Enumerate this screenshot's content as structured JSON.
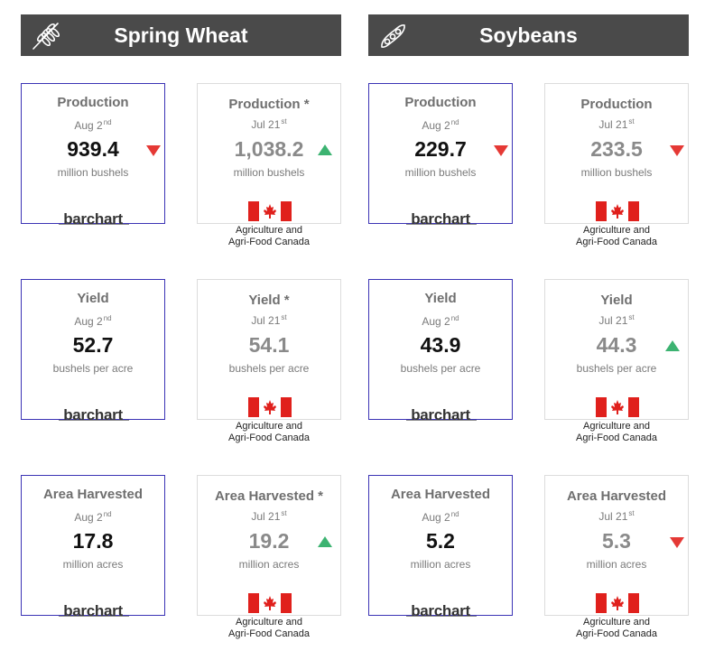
{
  "wheat": {
    "header": {
      "title": "Spring Wheat",
      "icon": "wheat-icon"
    },
    "production": {
      "barchart": {
        "title": "Production",
        "date": "Aug 2",
        "date_sup": "nd",
        "value": "939.4",
        "unit": "million bushels",
        "trend": "down"
      },
      "aafc": {
        "title": "Production *",
        "date": "Jul 21",
        "date_sup": "st",
        "value": "1,038.2",
        "unit": "million bushels",
        "trend": "up"
      }
    },
    "yield": {
      "barchart": {
        "title": "Yield",
        "date": "Aug 2",
        "date_sup": "nd",
        "value": "52.7",
        "unit": "bushels per acre",
        "trend": "none"
      },
      "aafc": {
        "title": "Yield *",
        "date": "Jul 21",
        "date_sup": "st",
        "value": "54.1",
        "unit": "bushels per acre",
        "trend": "none"
      }
    },
    "area": {
      "barchart": {
        "title": "Area Harvested",
        "date": "Aug 2",
        "date_sup": "nd",
        "value": "17.8",
        "unit": "million acres",
        "trend": "none"
      },
      "aafc": {
        "title": "Area Harvested *",
        "date": "Jul 21",
        "date_sup": "st",
        "value": "19.2",
        "unit": "million acres",
        "trend": "up"
      }
    }
  },
  "soy": {
    "header": {
      "title": "Soybeans",
      "icon": "soybean-pod-icon"
    },
    "production": {
      "barchart": {
        "title": "Production",
        "date": "Aug 2",
        "date_sup": "nd",
        "value": "229.7",
        "unit": "million bushels",
        "trend": "down"
      },
      "aafc": {
        "title": "Production",
        "date": "Jul 21",
        "date_sup": "st",
        "value": "233.5",
        "unit": "million bushels",
        "trend": "down"
      }
    },
    "yield": {
      "barchart": {
        "title": "Yield",
        "date": "Aug 2",
        "date_sup": "nd",
        "value": "43.9",
        "unit": "bushels per acre",
        "trend": "none"
      },
      "aafc": {
        "title": "Yield",
        "date": "Jul 21",
        "date_sup": "st",
        "value": "44.3",
        "unit": "bushels per acre",
        "trend": "up"
      }
    },
    "area": {
      "barchart": {
        "title": "Area Harvested",
        "date": "Aug 2",
        "date_sup": "nd",
        "value": "5.2",
        "unit": "million acres",
        "trend": "none"
      },
      "aafc": {
        "title": "Area Harvested",
        "date": "Jul 21",
        "date_sup": "st",
        "value": "5.3",
        "unit": "million acres",
        "trend": "down"
      }
    }
  },
  "labels": {
    "barchart_brand": "barchart",
    "source_line1": "Agriculture and",
    "source_line2": "Agri-Food Canada"
  },
  "colors": {
    "header_bg": "#4a4a4a",
    "barchart_border": "#3b33b5",
    "down_arrow": "#e53935",
    "up_arrow": "#3cb371",
    "flag_red": "#e0201c"
  }
}
